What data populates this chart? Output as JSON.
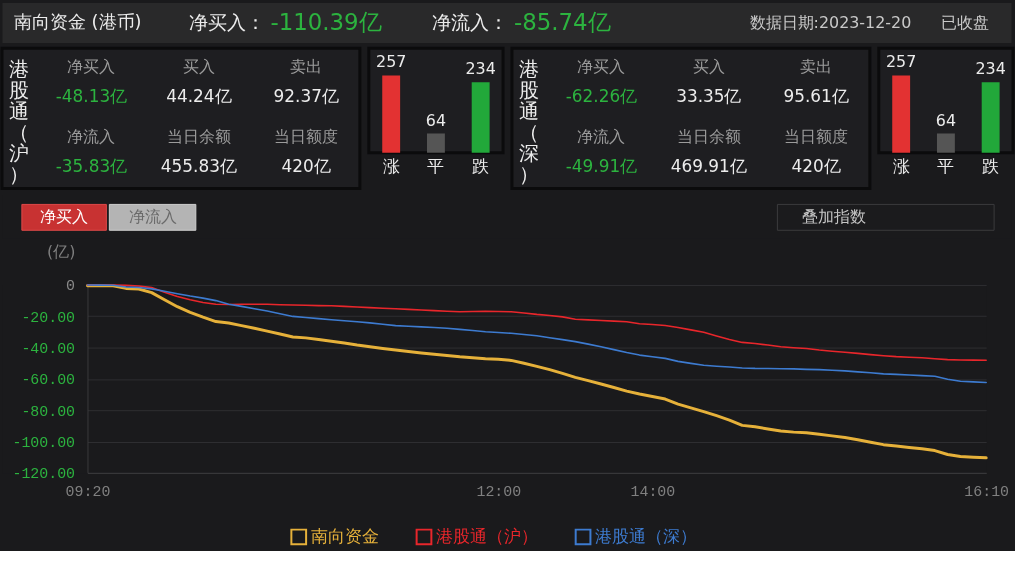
{
  "chart_data": [
    {
      "type": "other",
      "title": "南向资金 (港币)",
      "annotations": [
        "净买入：",
        "-110.39亿",
        "净流入：",
        "-85.74亿",
        "数据日期:2023-12-20",
        "已收盘"
      ]
    },
    {
      "type": "other",
      "title": "港股通（沪）",
      "annotations": [
        "净买入",
        "-48.13亿",
        "买入",
        "44.24亿",
        "卖出",
        "92.37亿",
        "净流入",
        "-35.83亿",
        "当日余额",
        "455.83亿",
        "当日额度",
        "420亿"
      ]
    },
    {
      "type": "bar",
      "categories": [
        "涨",
        "平",
        "跌"
      ],
      "values": [
        257,
        64,
        234
      ],
      "colors": [
        "#e33232",
        "#555555",
        "#22a83a"
      ],
      "data_labels": true,
      "tick_labels": "x"
    },
    {
      "type": "other",
      "title": "港股通（深）",
      "annotations": [
        "净买入",
        "-62.26亿",
        "买入",
        "33.35亿",
        "卖出",
        "95.61亿",
        "净流入",
        "-49.91亿",
        "当日余额",
        "469.91亿",
        "当日额度",
        "420亿"
      ]
    },
    {
      "type": "bar",
      "categories": [
        "涨",
        "平",
        "跌"
      ],
      "values": [
        257,
        64,
        234
      ],
      "colors": [
        "#e33232",
        "#555555",
        "#22a83a"
      ],
      "data_labels": true,
      "tick_labels": "x"
    },
    {
      "type": "line",
      "ylabel": "(亿)",
      "annotations": [
        "净买入",
        "净流入",
        "叠加指数"
      ],
      "categories": [
        "09:20",
        null,
        null,
        null,
        null,
        null,
        null,
        null,
        null,
        null,
        null,
        null,
        null,
        null,
        null,
        null,
        null,
        null,
        null,
        null,
        null,
        null,
        null,
        null,
        null,
        null,
        null,
        null,
        null,
        null,
        null,
        null,
        "12:00",
        null,
        null,
        null,
        null,
        null,
        null,
        null,
        null,
        null,
        null,
        null,
        "14:00",
        null,
        null,
        null,
        null,
        null,
        null,
        null,
        null,
        null,
        null,
        null,
        null,
        null,
        null,
        null,
        null,
        null,
        null,
        null,
        null,
        null,
        null,
        null,
        null,
        null,
        "16:10"
      ],
      "ylim": [
        -120,
        0
      ],
      "yticks": [
        0,
        {
          "value": -20,
          "label": "-20.00"
        },
        {
          "value": -40,
          "label": "-40.00"
        },
        {
          "value": -60,
          "label": "-60.00"
        },
        {
          "value": -80,
          "label": "-80.00"
        },
        {
          "value": -100,
          "label": "-100.00"
        },
        {
          "value": -120,
          "label": "-120.00"
        }
      ],
      "grid": "y",
      "legend": "bottom",
      "series": [
        {
          "name": "南向资金",
          "color": "#e6b13a",
          "values": [
            -0.5,
            -0.5,
            -0.6,
            -2.2,
            -2.6,
            -4.9,
            -9.5,
            -13.9,
            -17.5,
            -20.6,
            -23.4,
            -24.3,
            -26.0,
            -27.7,
            -29.5,
            -31.3,
            -33.2,
            -33.8,
            -34.9,
            -35.9,
            -37.1,
            -38.4,
            -39.5,
            -40.6,
            -41.6,
            -42.5,
            -43.4,
            -44.2,
            -45.0,
            -45.9,
            -46.5,
            -47.1,
            -47.4,
            -48.2,
            -50.0,
            -52.0,
            -54.1,
            -56.5,
            -59.0,
            -61.1,
            -63.3,
            -65.5,
            -67.8,
            -69.7,
            -71.3,
            -72.9,
            -76.1,
            -78.5,
            -80.9,
            -83.5,
            -86.3,
            -89.7,
            -90.6,
            -92.0,
            -93.3,
            -94.0,
            -94.4,
            -95.4,
            -96.4,
            -97.4,
            -98.9,
            -100.5,
            -102.0,
            -102.9,
            -103.8,
            -104.6,
            -105.8,
            -108.3,
            -109.6,
            -110.0,
            -110.4
          ]
        },
        {
          "name": "港股通（沪）",
          "color": "#e8262b",
          "values": [
            0,
            0,
            0,
            -0.3,
            -0.7,
            -1.7,
            -4.7,
            -7.4,
            -9.5,
            -11.2,
            -12.3,
            -12.5,
            -12.3,
            -12.3,
            -12.3,
            -12.6,
            -12.8,
            -13.0,
            -13.2,
            -13.3,
            -13.7,
            -14.1,
            -14.5,
            -14.9,
            -15.2,
            -15.6,
            -16.0,
            -16.4,
            -16.8,
            -17.1,
            -17.0,
            -16.9,
            -17.0,
            -17.1,
            -17.9,
            -18.8,
            -19.5,
            -20.4,
            -21.9,
            -22.3,
            -22.7,
            -23.1,
            -23.5,
            -24.8,
            -25.3,
            -25.9,
            -27.2,
            -28.7,
            -30.2,
            -32.6,
            -34.9,
            -36.7,
            -37.4,
            -38.4,
            -39.5,
            -40.1,
            -40.6,
            -41.6,
            -42.3,
            -43.0,
            -43.7,
            -44.5,
            -45.2,
            -45.8,
            -46.2,
            -46.5,
            -47.1,
            -47.7,
            -47.9,
            -48.0,
            -48.1
          ]
        },
        {
          "name": "港股通（深）",
          "color": "#3d7bd0",
          "values": [
            0,
            -0.1,
            -0.2,
            -1.3,
            -1.6,
            -2.5,
            -4.0,
            -5.6,
            -7.1,
            -8.4,
            -10.0,
            -12.3,
            -13.7,
            -15.2,
            -16.6,
            -18.4,
            -20.1,
            -20.8,
            -21.5,
            -22.2,
            -22.9,
            -23.5,
            -24.2,
            -25.1,
            -26.0,
            -26.4,
            -26.8,
            -27.2,
            -27.7,
            -28.4,
            -29.1,
            -29.9,
            -30.4,
            -30.9,
            -31.7,
            -32.5,
            -33.7,
            -34.9,
            -36.2,
            -37.8,
            -39.5,
            -41.3,
            -43.2,
            -44.8,
            -45.9,
            -46.9,
            -48.8,
            -50.1,
            -51.3,
            -51.9,
            -52.4,
            -53.0,
            -53.3,
            -53.4,
            -53.5,
            -53.6,
            -53.9,
            -54.1,
            -54.5,
            -54.9,
            -55.5,
            -56.1,
            -56.8,
            -57.1,
            -57.5,
            -57.9,
            -58.3,
            -60.2,
            -61.5,
            -61.9,
            -62.3
          ]
        }
      ]
    }
  ]
}
